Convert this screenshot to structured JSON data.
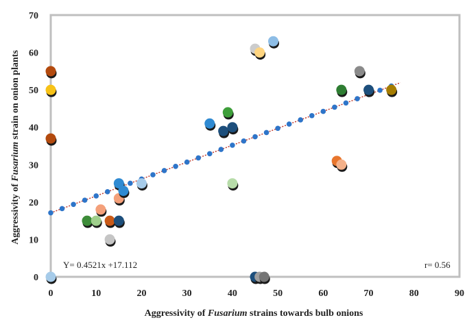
{
  "chart_data": {
    "type": "scatter",
    "xlabel_parts": [
      "Aggressivity of ",
      "Fusarium",
      " strains towards bulb onions"
    ],
    "ylabel_parts": [
      "Aggressivity  of ",
      "Fusarium",
      " strain on onion plants"
    ],
    "xlim": [
      0,
      90
    ],
    "ylim": [
      0,
      70
    ],
    "x_ticks": [
      "0",
      "10",
      "20",
      "30",
      "40",
      "50",
      "60",
      "70",
      "80",
      "90"
    ],
    "y_ticks": [
      "0",
      "10",
      "20",
      "30",
      "40",
      "50",
      "60",
      "70"
    ],
    "grid": false,
    "equation_text": "Y= 0.4521x +17.112",
    "r_text": "r= 0.56",
    "trendline": {
      "slope": 0.4521,
      "intercept": 17.112,
      "x_start": 0,
      "x_end": 77,
      "color": "#2e75c9",
      "dot_color": "#2e75c9"
    },
    "points": [
      {
        "x": 0,
        "y": 55,
        "color": "#b34a0e"
      },
      {
        "x": 0,
        "y": 50,
        "color": "#f7c217"
      },
      {
        "x": 0,
        "y": 37,
        "color": "#b34a0e"
      },
      {
        "x": 0,
        "y": 0,
        "color": "#a6cbe9"
      },
      {
        "x": 8,
        "y": 15,
        "color": "#3d8c39"
      },
      {
        "x": 10,
        "y": 15,
        "color": "#9fcf8c"
      },
      {
        "x": 11,
        "y": 18,
        "color": "#f4a07a"
      },
      {
        "x": 13,
        "y": 15,
        "color": "#c95a18"
      },
      {
        "x": 13,
        "y": 10,
        "color": "#c5c5c5"
      },
      {
        "x": 15,
        "y": 15,
        "color": "#1d4f7c"
      },
      {
        "x": 15,
        "y": 21,
        "color": "#f4a07a"
      },
      {
        "x": 15,
        "y": 25,
        "color": "#2f8ad2"
      },
      {
        "x": 16,
        "y": 23,
        "color": "#2f8ad2"
      },
      {
        "x": 20,
        "y": 25,
        "color": "#a6cbe9"
      },
      {
        "x": 35,
        "y": 41,
        "color": "#2f8ad2"
      },
      {
        "x": 38,
        "y": 39,
        "color": "#1d4f7c"
      },
      {
        "x": 39,
        "y": 44,
        "color": "#3d9e3a"
      },
      {
        "x": 40,
        "y": 40,
        "color": "#1d4f7c"
      },
      {
        "x": 40,
        "y": 25,
        "color": "#b7dca9"
      },
      {
        "x": 45,
        "y": 61,
        "color": "#cccccc"
      },
      {
        "x": 46,
        "y": 60,
        "color": "#ffd580"
      },
      {
        "x": 49,
        "y": 63,
        "color": "#8dbde6"
      },
      {
        "x": 45,
        "y": 0,
        "color": "#1d4f7c"
      },
      {
        "x": 46,
        "y": 0,
        "color": "#9e9e9e"
      },
      {
        "x": 47,
        "y": 0,
        "color": "#757575"
      },
      {
        "x": 63,
        "y": 31,
        "color": "#e8762d"
      },
      {
        "x": 64,
        "y": 30,
        "color": "#f4b18a"
      },
      {
        "x": 64,
        "y": 50,
        "color": "#2e7d32"
      },
      {
        "x": 68,
        "y": 55,
        "color": "#8a8a8a"
      },
      {
        "x": 70,
        "y": 50,
        "color": "#1d4f7c"
      },
      {
        "x": 75,
        "y": 50,
        "color": "#a57c00"
      }
    ]
  }
}
